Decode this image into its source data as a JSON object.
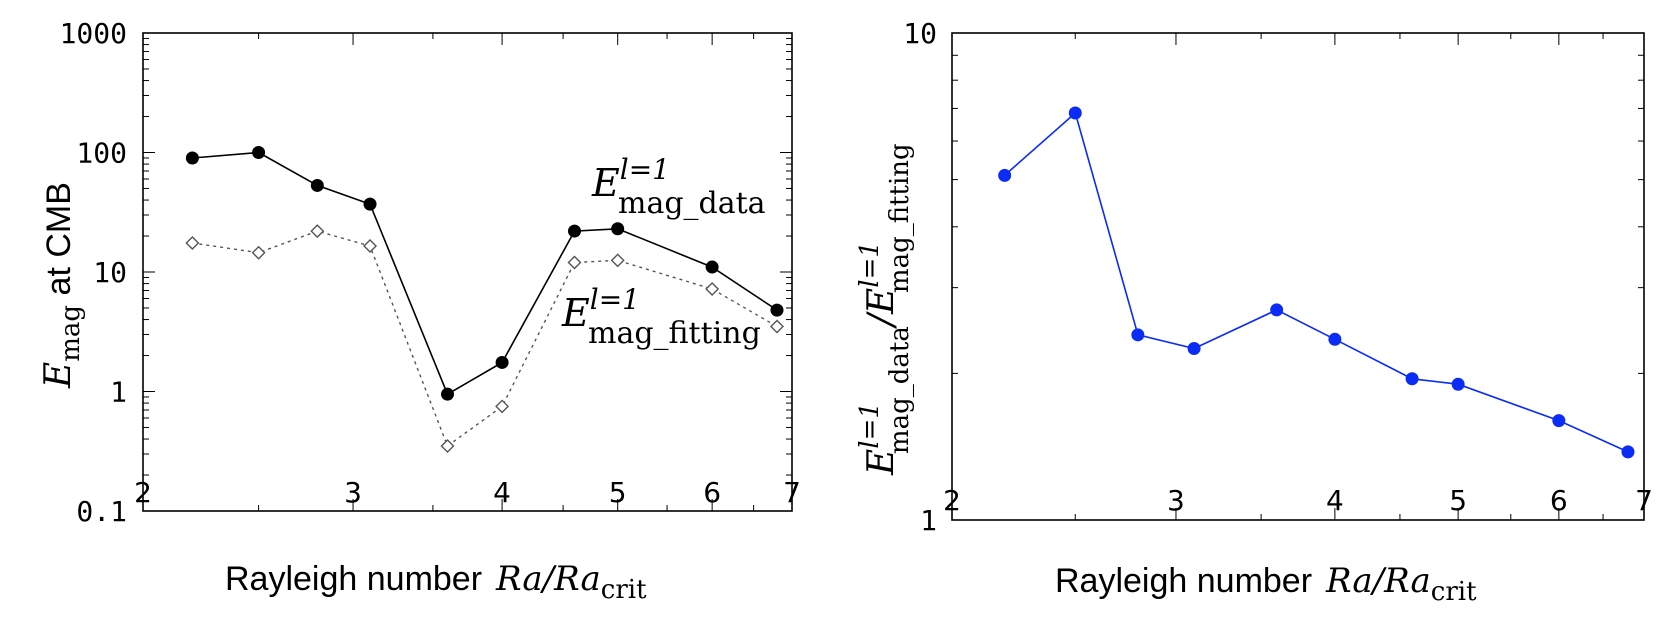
{
  "chart_data": [
    {
      "type": "line",
      "x_scale": "log",
      "y_scale": "log",
      "xlim": [
        2,
        7
      ],
      "ylim": [
        0.1,
        1000
      ],
      "x_ticks": [
        "2",
        "3",
        "4",
        "5",
        "6",
        "7"
      ],
      "y_ticks": [
        "0.1",
        "1",
        "10",
        "100",
        "1000"
      ],
      "xlabel": {
        "text": "Rayleigh number",
        "math_base": "Ra/Ra",
        "math_sub": "crit"
      },
      "ylabel": {
        "base": "E",
        "sub": "mag",
        "text": " at CMB"
      },
      "series": [
        {
          "name": "E^{l=1}_{mag_data}",
          "label_base": "E",
          "label_sup": "l=1",
          "label_sub": "mag_data",
          "color": "#000000",
          "marker": "filled-circle",
          "line": "solid",
          "x": [
            2.2,
            2.5,
            2.8,
            3.1,
            3.6,
            4.0,
            4.6,
            5.0,
            6.0,
            6.8
          ],
          "y": [
            90,
            100,
            53,
            37,
            0.95,
            1.75,
            22,
            23,
            11,
            4.8
          ]
        },
        {
          "name": "E^{l=1}_{mag_fitting}",
          "label_base": "E",
          "label_sup": "l=1",
          "label_sub": "mag_fitting",
          "color": "#555555",
          "marker": "open-diamond",
          "line": "dotted",
          "x": [
            2.2,
            2.5,
            2.8,
            3.1,
            3.6,
            4.0,
            4.6,
            5.0,
            6.0,
            6.8
          ],
          "y": [
            17.5,
            14.5,
            22,
            16.5,
            0.35,
            0.75,
            12,
            12.5,
            7.2,
            3.5
          ]
        }
      ]
    },
    {
      "type": "line",
      "x_scale": "log",
      "y_scale": "log",
      "xlim": [
        2,
        7
      ],
      "ylim": [
        1,
        10
      ],
      "x_ticks": [
        "2",
        "3",
        "4",
        "5",
        "6",
        "7"
      ],
      "y_ticks": [
        "1",
        "10"
      ],
      "xlabel": {
        "text": "Rayleigh number",
        "math_base": "Ra/Ra",
        "math_sub": "crit"
      },
      "ylabel": {
        "num_base": "E",
        "num_sup": "l=1",
        "num_sub": "mag_data",
        "den_base": "E",
        "den_sup": "l=1",
        "den_sub": "mag_fitting"
      },
      "series": [
        {
          "color": "#0a2cf5",
          "marker": "filled-circle",
          "line": "solid",
          "x": [
            2.2,
            2.5,
            2.8,
            3.1,
            3.6,
            4.0,
            4.6,
            5.0,
            6.0,
            6.8
          ],
          "y": [
            5.1,
            6.85,
            2.4,
            2.25,
            2.7,
            2.35,
            1.95,
            1.9,
            1.6,
            1.38
          ]
        }
      ]
    }
  ]
}
